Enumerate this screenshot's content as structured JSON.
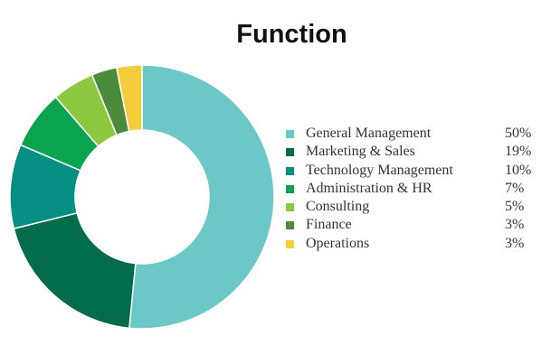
{
  "chart_data": {
    "type": "pie",
    "title": "Function",
    "categories": [
      "General Management",
      "Marketing & Sales",
      "Technology Management",
      "Administration & HR",
      "Consulting",
      "Finance",
      "Operations"
    ],
    "values": [
      50,
      19,
      10,
      7,
      5,
      3,
      3
    ],
    "value_labels": [
      "50%",
      "19%",
      "10%",
      "7%",
      "5%",
      "3%",
      "3%"
    ],
    "colors": [
      "#6cc8c6",
      "#016b4d",
      "#058e82",
      "#0aa451",
      "#8dc63f",
      "#4b8b3b",
      "#f3cd3b"
    ],
    "donut": true,
    "legend_placement": "right"
  }
}
